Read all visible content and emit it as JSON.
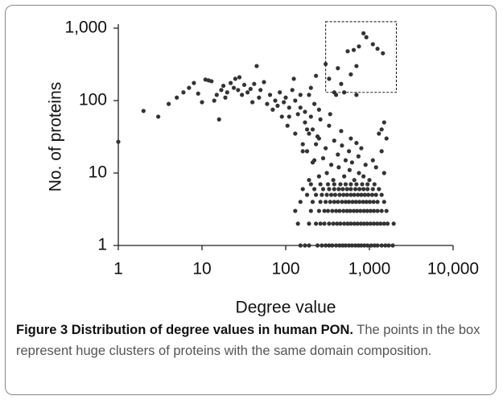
{
  "chart_data": {
    "type": "scatter",
    "xlabel": "Degree value",
    "ylabel": "No. of proteins",
    "log_x": true,
    "log_y": true,
    "color": "#333333",
    "xlim": [
      1,
      10000
    ],
    "ylim": [
      1,
      1000
    ],
    "xticks": [
      1,
      10,
      100,
      {
        "value": 1000,
        "label": "1,000"
      },
      {
        "value": 10000,
        "label": "10,000"
      }
    ],
    "yticks": [
      1,
      10,
      100,
      {
        "value": 1000,
        "label": "1,000"
      }
    ],
    "highlight_box": {
      "x": [
        300,
        2100
      ],
      "y": [
        130,
        1230
      ]
    },
    "x": [
      1,
      2,
      3,
      4,
      5,
      6,
      7,
      8,
      9,
      10,
      11,
      12,
      13,
      14,
      15,
      16,
      17,
      18,
      19,
      20,
      22,
      24,
      25,
      27,
      28,
      30,
      32,
      35,
      38,
      40,
      42,
      45,
      48,
      50,
      55,
      60,
      65,
      70,
      75,
      80,
      85,
      90,
      95,
      100,
      105,
      110,
      120,
      125,
      130,
      140,
      150,
      160,
      170,
      180,
      190,
      200,
      210,
      220,
      230,
      250,
      150,
      170,
      190,
      240,
      270,
      300,
      330,
      360,
      400,
      440,
      480,
      520,
      570,
      620,
      680,
      740,
      800,
      870,
      950,
      1050,
      1150,
      1250,
      1400,
      1550,
      1700,
      1900,
      140,
      190,
      230,
      260,
      290,
      330,
      370,
      410,
      450,
      500,
      550,
      600,
      660,
      720,
      790,
      860,
      940,
      1030,
      1130,
      1240,
      1360,
      1500,
      1650,
      1950,
      130,
      200,
      250,
      290,
      320,
      360,
      400,
      440,
      490,
      540,
      590,
      650,
      710,
      780,
      860,
      940,
      1030,
      1130,
      1250,
      1400,
      1600,
      150,
      210,
      260,
      300,
      340,
      380,
      420,
      470,
      520,
      570,
      630,
      690,
      760,
      840,
      920,
      1010,
      1120,
      1250,
      1500,
      180,
      230,
      270,
      310,
      350,
      390,
      440,
      490,
      540,
      600,
      660,
      730,
      800,
      880,
      970,
      1080,
      1200,
      1400,
      160,
      220,
      280,
      330,
      380,
      430,
      480,
      540,
      600,
      680,
      760,
      850,
      950,
      1100,
      1300,
      200,
      260,
      320,
      380,
      450,
      520,
      600,
      700,
      820,
      950,
      1150,
      190,
      250,
      310,
      370,
      430,
      500,
      580,
      660,
      750,
      850,
      1000,
      1200,
      1500,
      210,
      280,
      350,
      420,
      520,
      620,
      740,
      900,
      1100,
      1400,
      160,
      230,
      300,
      380,
      470,
      570,
      700,
      1300,
      1500,
      1400,
      180,
      240,
      330,
      200,
      260,
      150,
      220,
      170,
      130,
      110,
      190,
      250,
      340,
      460,
      600,
      800,
      1600,
      300,
      330,
      380,
      420,
      460,
      500,
      550,
      600,
      650,
      700,
      750,
      850,
      920,
      1100,
      1250,
      1450,
      700,
      400
    ],
    "y": [
      27,
      72,
      60,
      90,
      110,
      130,
      150,
      175,
      125,
      95,
      195,
      190,
      185,
      100,
      120,
      55,
      140,
      160,
      110,
      130,
      175,
      150,
      200,
      140,
      210,
      120,
      165,
      130,
      145,
      95,
      170,
      300,
      110,
      140,
      180,
      90,
      120,
      75,
      100,
      85,
      130,
      60,
      95,
      110,
      45,
      80,
      140,
      200,
      35,
      65,
      120,
      25,
      50,
      20,
      35,
      150,
      40,
      15,
      220,
      30,
      1,
      1,
      1,
      1,
      1,
      1,
      1,
      1,
      1,
      1,
      1,
      1,
      1,
      1,
      1,
      1,
      1,
      1,
      1,
      1,
      1,
      1,
      1,
      1,
      1,
      1,
      2,
      2,
      2,
      2,
      2,
      2,
      2,
      2,
      2,
      2,
      2,
      2,
      2,
      2,
      2,
      2,
      2,
      2,
      2,
      2,
      2,
      2,
      2,
      2,
      3,
      3,
      3,
      3,
      3,
      3,
      3,
      3,
      3,
      3,
      3,
      3,
      3,
      3,
      3,
      3,
      3,
      3,
      3,
      3,
      3,
      4,
      4,
      4,
      4,
      4,
      4,
      4,
      4,
      4,
      4,
      4,
      4,
      4,
      4,
      4,
      4,
      4,
      4,
      4,
      5,
      5,
      5,
      5,
      5,
      5,
      5,
      5,
      5,
      5,
      5,
      5,
      5,
      5,
      5,
      5,
      5,
      5,
      6,
      6,
      6,
      6,
      6,
      6,
      6,
      6,
      6,
      6,
      6,
      6,
      6,
      6,
      6,
      7,
      7,
      7,
      7,
      7,
      7,
      7,
      7,
      7,
      7,
      7,
      8,
      9,
      10,
      8,
      12,
      9,
      11,
      8,
      10,
      9,
      8,
      12,
      10,
      14,
      16,
      13,
      18,
      15,
      14,
      17,
      13,
      15,
      20,
      20,
      25,
      22,
      28,
      24,
      20,
      26,
      35,
      50,
      40,
      40,
      32,
      45,
      60,
      55,
      80,
      90,
      70,
      100,
      60,
      120,
      75,
      65,
      38,
      30,
      22,
      30,
      320,
      200,
      130,
      280,
      170,
      130,
      480,
      230,
      500,
      300,
      560,
      850,
      750,
      600,
      520,
      450,
      120,
      120
    ]
  },
  "caption": {
    "title": "Figure 3 Distribution of degree values in human PON.",
    "text": "The points in the box represent huge clusters of proteins with the same domain composition."
  }
}
